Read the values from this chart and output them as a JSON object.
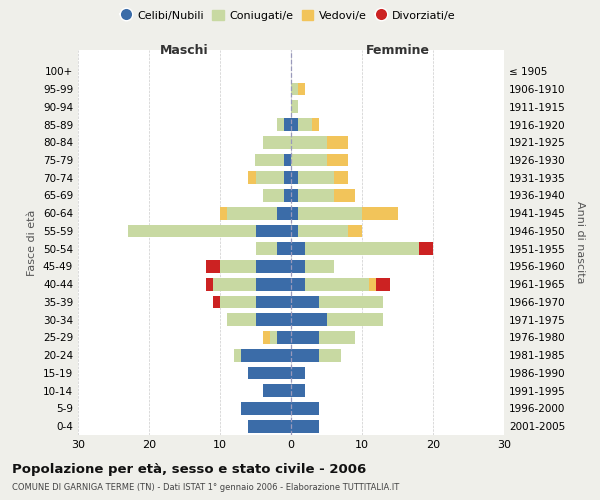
{
  "age_groups": [
    "100+",
    "95-99",
    "90-94",
    "85-89",
    "80-84",
    "75-79",
    "70-74",
    "65-69",
    "60-64",
    "55-59",
    "50-54",
    "45-49",
    "40-44",
    "35-39",
    "30-34",
    "25-29",
    "20-24",
    "15-19",
    "10-14",
    "5-9",
    "0-4"
  ],
  "birth_years": [
    "≤ 1905",
    "1906-1910",
    "1911-1915",
    "1916-1920",
    "1921-1925",
    "1926-1930",
    "1931-1935",
    "1936-1940",
    "1941-1945",
    "1946-1950",
    "1951-1955",
    "1956-1960",
    "1961-1965",
    "1966-1970",
    "1971-1975",
    "1976-1980",
    "1981-1985",
    "1986-1990",
    "1991-1995",
    "1996-2000",
    "2001-2005"
  ],
  "colors": {
    "celibi": "#3b6ca8",
    "coniugati": "#c8d9a2",
    "vedovi": "#f2c45a",
    "divorziati": "#cc2222"
  },
  "maschi": {
    "celibi": [
      0,
      0,
      0,
      1,
      0,
      1,
      1,
      1,
      2,
      5,
      2,
      5,
      5,
      5,
      5,
      2,
      7,
      6,
      4,
      7,
      6
    ],
    "coniugati": [
      0,
      0,
      0,
      1,
      4,
      4,
      4,
      3,
      7,
      18,
      3,
      5,
      6,
      5,
      4,
      1,
      1,
      0,
      0,
      0,
      0
    ],
    "vedovi": [
      0,
      0,
      0,
      0,
      0,
      0,
      1,
      0,
      1,
      0,
      0,
      0,
      0,
      0,
      0,
      1,
      0,
      0,
      0,
      0,
      0
    ],
    "divorziati": [
      0,
      0,
      0,
      0,
      0,
      0,
      0,
      0,
      0,
      0,
      0,
      2,
      1,
      1,
      0,
      0,
      0,
      0,
      0,
      0,
      0
    ]
  },
  "femmine": {
    "celibi": [
      0,
      0,
      0,
      1,
      0,
      0,
      1,
      1,
      1,
      1,
      2,
      2,
      2,
      4,
      5,
      4,
      4,
      2,
      2,
      4,
      4
    ],
    "coniugati": [
      0,
      1,
      1,
      2,
      5,
      5,
      5,
      5,
      9,
      7,
      16,
      4,
      9,
      9,
      8,
      5,
      3,
      0,
      0,
      0,
      0
    ],
    "vedovi": [
      0,
      1,
      0,
      1,
      3,
      3,
      2,
      3,
      5,
      2,
      0,
      0,
      1,
      0,
      0,
      0,
      0,
      0,
      0,
      0,
      0
    ],
    "divorziati": [
      0,
      0,
      0,
      0,
      0,
      0,
      0,
      0,
      0,
      0,
      2,
      0,
      2,
      0,
      0,
      0,
      0,
      0,
      0,
      0,
      0
    ]
  },
  "xlim": 30,
  "title": "Popolazione per età, sesso e stato civile - 2006",
  "subtitle": "COMUNE DI GARNIGA TERME (TN) - Dati ISTAT 1° gennaio 2006 - Elaborazione TUTTITALIA.IT",
  "ylabel_left": "Fasce di età",
  "ylabel_right": "Anni di nascita",
  "legend_labels": [
    "Celibi/Nubili",
    "Coniugati/e",
    "Vedovi/e",
    "Divorziati/e"
  ],
  "maschi_label": "Maschi",
  "femmine_label": "Femmine",
  "bg_color": "#efefea",
  "plot_bg": "#ffffff"
}
